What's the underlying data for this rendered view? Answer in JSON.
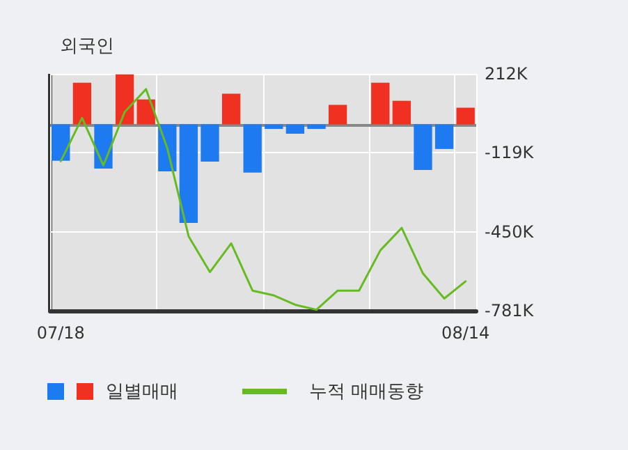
{
  "chart_data": {
    "type": "bar",
    "title": "외국인",
    "categories": [
      "07/18",
      null,
      null,
      null,
      null,
      null,
      null,
      null,
      null,
      null,
      null,
      null,
      null,
      null,
      null,
      null,
      null,
      null,
      null,
      "08/14"
    ],
    "series": [
      {
        "name": "일별매매",
        "colors": [
          "#1e7af0",
          "#f03020",
          "#1e7af0",
          "#f03020",
          "#f03020",
          "#1e7af0",
          "#1e7af0",
          "#1e7af0",
          "#f03020",
          "#1e7af0",
          "#1e7af0",
          "#1e7af0",
          "#1e7af0",
          "#f03020",
          "#f03020",
          "#f03020",
          "#f03020",
          "#1e7af0",
          "#1e7af0",
          "#f03020"
        ],
        "values": [
          -152,
          175,
          -185,
          210,
          105,
          -197,
          -413,
          -156,
          129,
          -202,
          -19,
          -39,
          -19,
          82,
          0,
          175,
          99,
          -191,
          -103,
          70
        ]
      },
      {
        "name": "누적 매매동향",
        "type": "line",
        "color": "#66bb22",
        "values": [
          -154,
          27,
          -172,
          52,
          148,
          -100,
          -469,
          -619,
          -499,
          -697,
          -717,
          -756,
          -777,
          -697,
          -697,
          -528,
          -434,
          -625,
          -730,
          -658
        ]
      }
    ],
    "ylim": [
      -781,
      212
    ],
    "yticks": [
      {
        "value": 212,
        "label": "212K"
      },
      {
        "value": -119,
        "label": "-119K"
      },
      {
        "value": -450,
        "label": "-450K"
      },
      {
        "value": -781,
        "label": "-781K"
      }
    ],
    "ref_lines": [
      {
        "axis": "y",
        "value": 0,
        "color": "#888888"
      }
    ],
    "grid": true,
    "legend": "bottom",
    "marker": "none",
    "line_style": "solid"
  }
}
